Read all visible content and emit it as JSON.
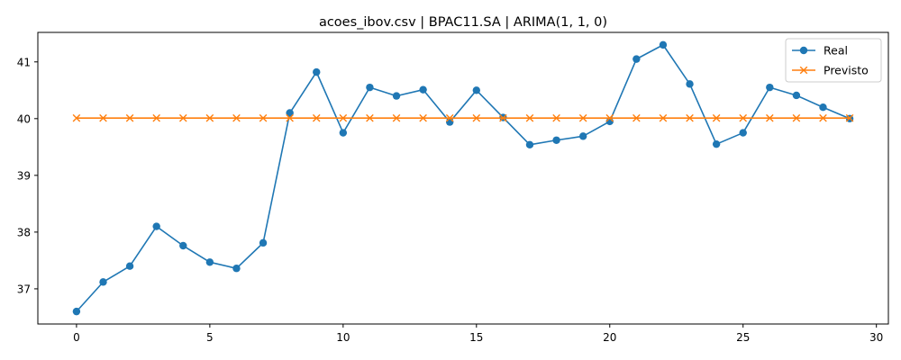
{
  "chart_data": {
    "type": "line",
    "title": "acoes_ibov.csv | BPAC11.SA | ARIMA(1, 1, 0)",
    "xlabel": "",
    "ylabel": "",
    "xlim": [
      -1.45,
      30.45
    ],
    "ylim": [
      36.38,
      41.52
    ],
    "xticks": [
      0,
      5,
      10,
      15,
      20,
      25,
      30
    ],
    "yticks": [
      37,
      38,
      39,
      40,
      41
    ],
    "grid": false,
    "legend_position": "top-right",
    "x": [
      0,
      1,
      2,
      3,
      4,
      5,
      6,
      7,
      8,
      9,
      10,
      11,
      12,
      13,
      14,
      15,
      16,
      17,
      18,
      19,
      20,
      21,
      22,
      23,
      24,
      25,
      26,
      27,
      28,
      29
    ],
    "series": [
      {
        "name": "Real",
        "color": "#1f77b4",
        "marker": "circle",
        "values": [
          36.6,
          37.12,
          37.4,
          38.1,
          37.76,
          37.47,
          37.36,
          37.81,
          40.1,
          40.82,
          39.75,
          40.55,
          40.4,
          40.51,
          39.94,
          40.5,
          40.02,
          39.54,
          39.62,
          39.69,
          39.95,
          41.05,
          41.3,
          40.61,
          39.55,
          39.75,
          40.55,
          40.41,
          40.2,
          40.0
        ]
      },
      {
        "name": "Previsto",
        "color": "#ff7f0e",
        "marker": "x",
        "values": [
          40.01,
          40.01,
          40.01,
          40.01,
          40.01,
          40.01,
          40.01,
          40.01,
          40.01,
          40.01,
          40.01,
          40.01,
          40.01,
          40.01,
          40.01,
          40.01,
          40.01,
          40.01,
          40.01,
          40.01,
          40.01,
          40.01,
          40.01,
          40.01,
          40.01,
          40.01,
          40.01,
          40.01,
          40.01,
          40.01
        ]
      }
    ]
  }
}
